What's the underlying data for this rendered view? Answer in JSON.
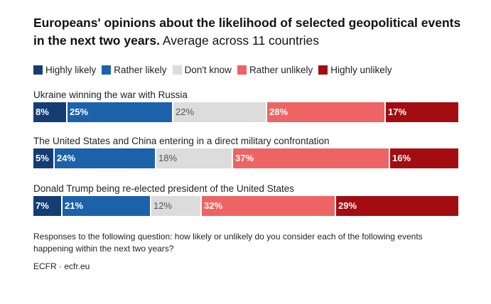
{
  "header": {
    "title_bold": "Europeans' opinions about the likelihood of selected geopolitical events in the next two years.",
    "title_sub": "Average across 11 countries"
  },
  "chart_data": {
    "type": "bar",
    "orientation": "horizontal-stacked-100",
    "title": "Europeans' opinions about the likelihood of selected geopolitical events in the next two years. Average across 11 countries",
    "categories": [
      "Ukraine winning the war with Russia",
      "The United States and China entering in a direct military confrontation",
      "Donald Trump being re-elected president of the United States"
    ],
    "series": [
      {
        "name": "Highly likely",
        "color": "#143d73",
        "values": [
          8,
          5,
          7
        ]
      },
      {
        "name": "Rather likely",
        "color": "#1b62ab",
        "values": [
          25,
          24,
          21
        ]
      },
      {
        "name": "Don't know",
        "color": "#dcdcdc",
        "values": [
          22,
          18,
          12
        ]
      },
      {
        "name": "Rather unlikely",
        "color": "#ee6464",
        "values": [
          28,
          37,
          32
        ]
      },
      {
        "name": "Highly unlikely",
        "color": "#a30d12",
        "values": [
          17,
          16,
          29
        ]
      }
    ],
    "value_suffix": "%",
    "legend_position": "top",
    "grid": false
  },
  "footer": {
    "note": "Responses to the following question: how likely or unlikely do you consider each of the following events happening within the next two years?",
    "source": "ECFR · ecfr.eu"
  }
}
